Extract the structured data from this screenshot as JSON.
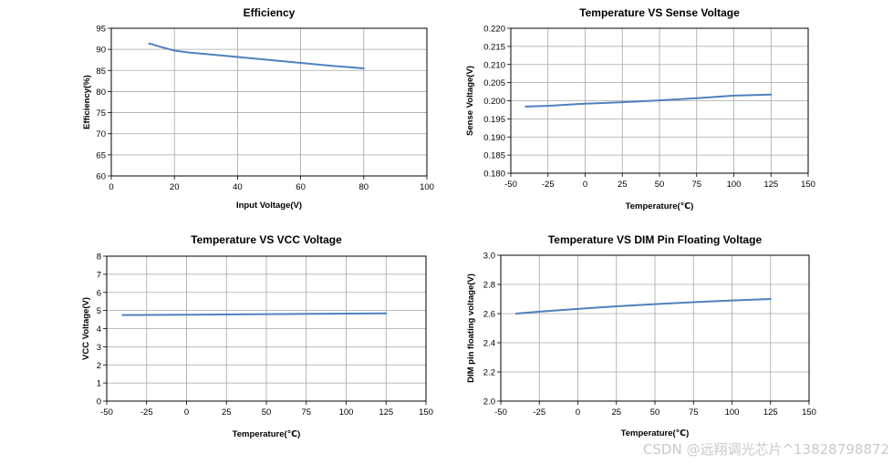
{
  "watermark": "CSDN @远翔调光芯片^13828798872",
  "chart_data": [
    {
      "type": "line",
      "title": "Efficiency",
      "xlabel": "Input Voltage(V)",
      "ylabel": "Efficiency(%)",
      "xlim": [
        0,
        100
      ],
      "ylim": [
        60,
        95
      ],
      "x_ticks": [
        0,
        20,
        40,
        60,
        80,
        100
      ],
      "y_ticks": [
        60,
        65,
        70,
        75,
        80,
        85,
        90,
        95
      ],
      "y_tick_labels": [
        "60",
        "65",
        "70",
        "75",
        "80",
        "85",
        "90",
        "95"
      ],
      "series": [
        {
          "name": "Efficiency",
          "x": [
            12,
            16,
            20,
            25,
            30,
            40,
            50,
            60,
            70,
            80
          ],
          "y": [
            91.4,
            90.5,
            89.7,
            89.2,
            88.9,
            88.2,
            87.5,
            86.8,
            86.1,
            85.5
          ]
        }
      ]
    },
    {
      "type": "line",
      "title": "Temperature VS Sense Voltage",
      "xlabel": "Temperature(℃)",
      "ylabel": "Sense Voltage(V)",
      "xlim": [
        -50,
        150
      ],
      "ylim": [
        0.18,
        0.22
      ],
      "x_ticks": [
        -50,
        -25,
        0,
        25,
        50,
        75,
        100,
        125,
        150
      ],
      "y_ticks": [
        0.18,
        0.185,
        0.19,
        0.195,
        0.2,
        0.205,
        0.21,
        0.215,
        0.22
      ],
      "y_tick_labels": [
        "0.180",
        "0.185",
        "0.190",
        "0.195",
        "0.200",
        "0.205",
        "0.210",
        "0.215",
        "0.220"
      ],
      "series": [
        {
          "name": "Sense Voltage",
          "x": [
            -40,
            -25,
            0,
            25,
            50,
            75,
            100,
            125
          ],
          "y": [
            0.1984,
            0.1986,
            0.1992,
            0.1996,
            0.2001,
            0.2007,
            0.2014,
            0.2017
          ]
        }
      ]
    },
    {
      "type": "line",
      "title": "Temperature VS VCC Voltage",
      "xlabel": "Temperature(℃)",
      "ylabel": "VCC Voltage(V)",
      "xlim": [
        -50,
        150
      ],
      "ylim": [
        0,
        8
      ],
      "x_ticks": [
        -50,
        -25,
        0,
        25,
        50,
        75,
        100,
        125,
        150
      ],
      "y_ticks": [
        0,
        1,
        2,
        3,
        4,
        5,
        6,
        7,
        8
      ],
      "y_tick_labels": [
        "0",
        "1",
        "2",
        "3",
        "4",
        "5",
        "6",
        "7",
        "8"
      ],
      "series": [
        {
          "name": "VCC Voltage",
          "x": [
            -40,
            0,
            50,
            100,
            125
          ],
          "y": [
            4.75,
            4.77,
            4.8,
            4.83,
            4.84
          ]
        }
      ]
    },
    {
      "type": "line",
      "title": "Temperature VS DIM Pin Floating Voltage",
      "xlabel": "Temperature(℃)",
      "ylabel": "DIM pin floating voltage(V)",
      "xlim": [
        -50,
        150
      ],
      "ylim": [
        2.0,
        3.0
      ],
      "x_ticks": [
        -50,
        -25,
        0,
        25,
        50,
        75,
        100,
        125,
        150
      ],
      "y_ticks": [
        2.0,
        2.2,
        2.4,
        2.6,
        2.8,
        3.0
      ],
      "y_tick_labels": [
        "2.0",
        "2.2",
        "2.4",
        "2.6",
        "2.8",
        "3.0"
      ],
      "series": [
        {
          "name": "DIM Pin Floating Voltage",
          "x": [
            -40,
            -25,
            0,
            25,
            50,
            75,
            100,
            125
          ],
          "y": [
            2.6,
            2.613,
            2.632,
            2.65,
            2.665,
            2.678,
            2.69,
            2.7
          ]
        }
      ]
    }
  ]
}
